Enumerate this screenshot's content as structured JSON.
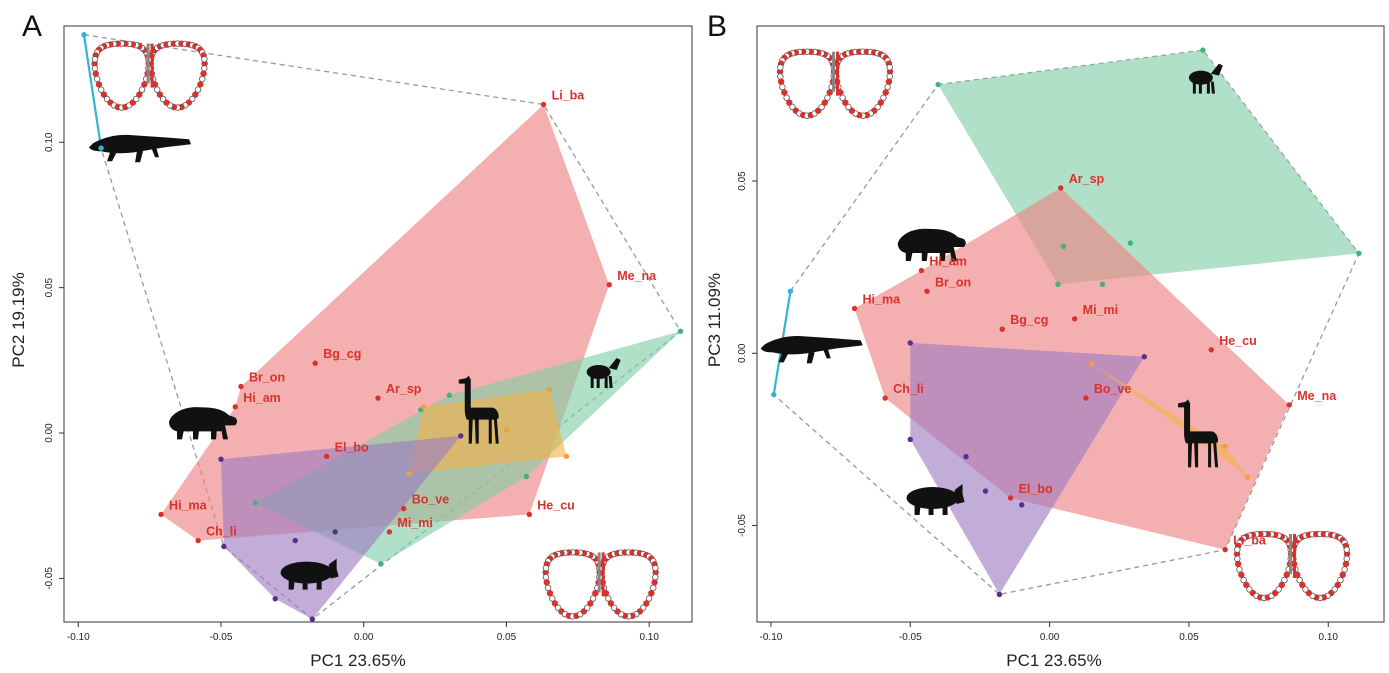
{
  "panels": [
    {
      "letter": "A",
      "xlabel": "PC1 23.65%",
      "ylabel": "PC2 19.19%"
    },
    {
      "letter": "B",
      "xlabel": "PC1 23.65%",
      "ylabel": "PC3 11.09%"
    }
  ],
  "chart_data": [
    {
      "type": "scatter",
      "panel": "A",
      "title": "",
      "xlabel": "PC1 23.65%",
      "ylabel": "PC2 19.19%",
      "xlim": [
        -0.105,
        0.115
      ],
      "ylim": [
        -0.065,
        0.14
      ],
      "xticks": [
        -0.1,
        -0.05,
        0.0,
        0.05,
        0.1
      ],
      "xtick_labels": [
        "-0.10",
        "-0.05",
        "0.00",
        "0.05",
        "0.10"
      ],
      "yticks": [
        -0.05,
        0.0,
        0.05,
        0.1
      ],
      "ytick_labels": [
        "-0.05",
        "0.00",
        "0.05",
        "0.10"
      ],
      "grid": false,
      "colors": {
        "red": "#d9322c",
        "pink_fill": "#ee8585",
        "green": "#3fb37a",
        "green_fill": "#7fcda5",
        "orange": "#f0a03a",
        "orange_fill": "#f2b24a",
        "purple": "#5b2d8e",
        "purple_fill": "#9d7ac2",
        "cyan": "#33b4d6",
        "hull": "#999999"
      },
      "hull_order": [
        "cyan",
        "red",
        "green",
        "orange",
        "purple"
      ],
      "labeled_points": [
        {
          "label": "Li_ba",
          "x": 0.063,
          "y": 0.113
        },
        {
          "label": "Me_na",
          "x": 0.086,
          "y": 0.051
        },
        {
          "label": "Bg_cg",
          "x": -0.017,
          "y": 0.024
        },
        {
          "label": "Br_on",
          "x": -0.043,
          "y": 0.016
        },
        {
          "label": "Hi_am",
          "x": -0.045,
          "y": 0.009
        },
        {
          "label": "Ar_sp",
          "x": 0.005,
          "y": 0.012
        },
        {
          "label": "El_bo",
          "x": -0.013,
          "y": -0.008
        },
        {
          "label": "Hi_ma",
          "x": -0.071,
          "y": -0.028
        },
        {
          "label": "Ch_li",
          "x": -0.058,
          "y": -0.037
        },
        {
          "label": "Bo_ve",
          "x": 0.014,
          "y": -0.026
        },
        {
          "label": "Mi_mi",
          "x": 0.009,
          "y": -0.034
        },
        {
          "label": "He_cu",
          "x": 0.058,
          "y": -0.028
        }
      ],
      "groups": [
        {
          "color": "cyan",
          "points": [
            [
              -0.098,
              0.137
            ],
            [
              -0.092,
              0.098
            ]
          ]
        },
        {
          "color": "green",
          "points": [
            [
              0.111,
              0.035
            ],
            [
              0.03,
              0.013
            ],
            [
              0.057,
              -0.015
            ],
            [
              0.006,
              -0.045
            ],
            [
              -0.038,
              -0.024
            ],
            [
              0.02,
              0.008
            ]
          ]
        },
        {
          "color": "orange",
          "points": [
            [
              0.021,
              0.009
            ],
            [
              0.065,
              0.015
            ],
            [
              0.071,
              -0.008
            ],
            [
              0.016,
              -0.014
            ],
            [
              0.05,
              0.001
            ]
          ]
        },
        {
          "color": "purple",
          "points": [
            [
              -0.05,
              -0.009
            ],
            [
              0.034,
              -0.001
            ],
            [
              -0.018,
              -0.064
            ],
            [
              -0.031,
              -0.057
            ],
            [
              -0.049,
              -0.039
            ],
            [
              -0.024,
              -0.037
            ],
            [
              -0.01,
              -0.034
            ]
          ]
        }
      ],
      "hulls": {
        "red": [
          "Li_ba",
          "Me_na",
          "He_cu",
          "Ch_li",
          "Hi_ma",
          "Hi_am",
          "Br_on"
        ],
        "green": [
          [
            0.111,
            0.035
          ],
          [
            0.03,
            0.013
          ],
          [
            -0.038,
            -0.024
          ],
          [
            0.006,
            -0.045
          ],
          [
            0.057,
            -0.015
          ]
        ],
        "orange": [
          [
            0.021,
            0.009
          ],
          [
            0.065,
            0.015
          ],
          [
            0.071,
            -0.008
          ],
          [
            0.016,
            -0.014
          ]
        ],
        "purple": [
          [
            -0.05,
            -0.009
          ],
          [
            0.034,
            -0.001
          ],
          [
            -0.018,
            -0.064
          ],
          [
            -0.031,
            -0.057
          ],
          [
            -0.049,
            -0.039
          ]
        ],
        "outer_dashed": [
          [
            -0.098,
            0.137
          ],
          [
            0.063,
            0.113
          ],
          [
            0.111,
            0.035
          ],
          [
            -0.018,
            -0.064
          ],
          [
            -0.049,
            -0.039
          ],
          [
            -0.092,
            0.098
          ]
        ]
      },
      "icons": [
        {
          "name": "crocodile-icon",
          "x": -0.078,
          "y": 0.099
        },
        {
          "name": "tapir-icon",
          "x": -0.057,
          "y": 0.004
        },
        {
          "name": "pig-icon",
          "x": -0.02,
          "y": -0.048
        },
        {
          "name": "sheep-icon",
          "x": 0.083,
          "y": 0.021
        },
        {
          "name": "llama-icon",
          "x": 0.041,
          "y": 0.006
        },
        {
          "name": "jaw-outline-icon",
          "x": -0.075,
          "y": 0.125
        },
        {
          "name": "jaw-outline-icon",
          "x": 0.083,
          "y": -0.05
        }
      ]
    },
    {
      "type": "scatter",
      "panel": "B",
      "title": "",
      "xlabel": "PC1 23.65%",
      "ylabel": "PC3 11.09%",
      "xlim": [
        -0.105,
        0.12
      ],
      "ylim": [
        -0.078,
        0.095
      ],
      "xticks": [
        -0.1,
        -0.05,
        0.0,
        0.05,
        0.1
      ],
      "xtick_labels": [
        "-0.10",
        "-0.05",
        "0.00",
        "0.05",
        "0.10"
      ],
      "yticks": [
        -0.05,
        0.0,
        0.05
      ],
      "ytick_labels": [
        "-0.05",
        "0.00",
        "0.05"
      ],
      "grid": false,
      "colors": {
        "red": "#d9322c",
        "pink_fill": "#ee8585",
        "green": "#3fb37a",
        "green_fill": "#7fcda5",
        "orange": "#f0a03a",
        "orange_fill": "#f2b24a",
        "purple": "#5b2d8e",
        "purple_fill": "#9d7ac2",
        "cyan": "#33b4d6",
        "hull": "#999999"
      },
      "hull_order": [
        "cyan",
        "green",
        "red",
        "purple",
        "orange"
      ],
      "labeled_points": [
        {
          "label": "Ar_sp",
          "x": 0.004,
          "y": 0.048
        },
        {
          "label": "Hi_am",
          "x": -0.046,
          "y": 0.024
        },
        {
          "label": "Br_on",
          "x": -0.044,
          "y": 0.018
        },
        {
          "label": "Hi_ma",
          "x": -0.07,
          "y": 0.013
        },
        {
          "label": "Bg_cg",
          "x": -0.017,
          "y": 0.007
        },
        {
          "label": "Mi_mi",
          "x": 0.009,
          "y": 0.01
        },
        {
          "label": "He_cu",
          "x": 0.058,
          "y": 0.001
        },
        {
          "label": "Ch_li",
          "x": -0.059,
          "y": -0.013
        },
        {
          "label": "Bo_ve",
          "x": 0.013,
          "y": -0.013
        },
        {
          "label": "Me_na",
          "x": 0.086,
          "y": -0.015
        },
        {
          "label": "El_bo",
          "x": -0.014,
          "y": -0.042
        },
        {
          "label": "Li_ba",
          "x": 0.063,
          "y": -0.057
        }
      ],
      "groups": [
        {
          "color": "cyan",
          "points": [
            [
              -0.093,
              0.018
            ],
            [
              -0.099,
              -0.012
            ]
          ]
        },
        {
          "color": "green",
          "points": [
            [
              -0.04,
              0.078
            ],
            [
              0.055,
              0.088
            ],
            [
              0.111,
              0.029
            ],
            [
              0.003,
              0.02
            ],
            [
              0.005,
              0.031
            ],
            [
              0.019,
              0.02
            ],
            [
              0.029,
              0.032
            ]
          ]
        },
        {
          "color": "orange",
          "points": [
            [
              0.015,
              -0.003
            ],
            [
              0.063,
              -0.027
            ],
            [
              0.071,
              -0.036
            ]
          ]
        },
        {
          "color": "purple",
          "points": [
            [
              -0.05,
              0.003
            ],
            [
              0.034,
              -0.001
            ],
            [
              -0.018,
              -0.07
            ],
            [
              -0.05,
              -0.025
            ],
            [
              -0.03,
              -0.03
            ],
            [
              -0.023,
              -0.04
            ],
            [
              -0.01,
              -0.044
            ]
          ]
        }
      ],
      "hulls": {
        "red": [
          "Ar_sp",
          "Me_na",
          "Li_ba",
          "El_bo",
          "Ch_li",
          "Hi_ma",
          "Hi_am"
        ],
        "green": [
          [
            -0.04,
            0.078
          ],
          [
            0.055,
            0.088
          ],
          [
            0.111,
            0.029
          ],
          [
            0.003,
            0.02
          ]
        ],
        "orange": [
          [
            0.015,
            -0.003
          ],
          [
            0.063,
            -0.027
          ],
          [
            0.071,
            -0.036
          ],
          [
            0.06,
            -0.029
          ]
        ],
        "purple": [
          [
            -0.05,
            0.003
          ],
          [
            0.034,
            -0.001
          ],
          [
            -0.018,
            -0.07
          ],
          [
            -0.05,
            -0.025
          ]
        ],
        "outer_dashed": [
          [
            -0.04,
            0.078
          ],
          [
            0.055,
            0.088
          ],
          [
            0.111,
            0.029
          ],
          [
            0.063,
            -0.057
          ],
          [
            -0.018,
            -0.07
          ],
          [
            -0.099,
            -0.012
          ],
          [
            -0.093,
            0.018
          ]
        ]
      },
      "icons": [
        {
          "name": "crocodile-icon",
          "x": -0.085,
          "y": 0.002
        },
        {
          "name": "tapir-icon",
          "x": -0.043,
          "y": 0.032
        },
        {
          "name": "pig-icon",
          "x": -0.042,
          "y": -0.042
        },
        {
          "name": "sheep-icon",
          "x": 0.055,
          "y": 0.08
        },
        {
          "name": "llama-icon",
          "x": 0.054,
          "y": -0.025
        },
        {
          "name": "jaw-outline-icon",
          "x": -0.077,
          "y": 0.08
        },
        {
          "name": "jaw-outline-icon",
          "x": 0.087,
          "y": -0.06
        }
      ]
    }
  ]
}
